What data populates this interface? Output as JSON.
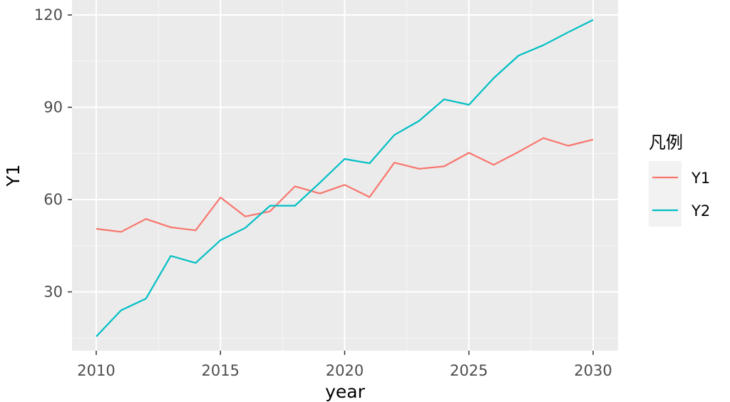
{
  "chart_data": {
    "type": "line",
    "xlabel": "year",
    "ylabel": "Y1",
    "xlim": [
      2009,
      2031
    ],
    "ylim": [
      10,
      122
    ],
    "xticks": [
      2010,
      2015,
      2020,
      2025,
      2030
    ],
    "yticks": [
      30,
      60,
      90,
      120
    ],
    "grid": true,
    "legend": {
      "title": "凡例",
      "position": "right"
    },
    "x": [
      2010,
      2011,
      2012,
      2013,
      2014,
      2015,
      2016,
      2017,
      2018,
      2019,
      2020,
      2021,
      2022,
      2023,
      2024,
      2025,
      2026,
      2027,
      2028,
      2029,
      2030
    ],
    "series": [
      {
        "name": "Y1",
        "color": "#f8766d",
        "values": [
          50.5,
          49.5,
          53.7,
          51.0,
          50.0,
          60.7,
          54.5,
          56.2,
          64.3,
          62.0,
          64.8,
          60.8,
          72.0,
          70.0,
          70.8,
          75.2,
          71.3,
          75.5,
          80.0,
          77.5,
          79.5
        ]
      },
      {
        "name": "Y2",
        "color": "#00bfc4",
        "values": [
          15.5,
          24.0,
          27.8,
          41.7,
          39.4,
          46.8,
          50.8,
          58.0,
          58.0,
          65.5,
          73.2,
          71.8,
          81.0,
          85.6,
          92.6,
          90.8,
          99.5,
          106.8,
          110.2,
          114.4,
          118.4
        ]
      }
    ]
  }
}
